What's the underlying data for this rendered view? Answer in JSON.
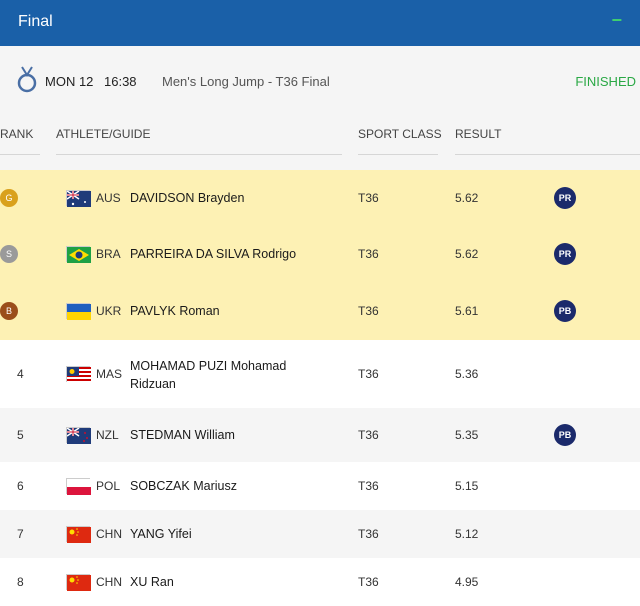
{
  "header": {
    "title": "Final",
    "collapse_icon": "minus-icon"
  },
  "event": {
    "date": "MON 12",
    "time": "16:38",
    "name": "Men's Long Jump - T36 Final",
    "status": "FINISHED",
    "status_color": "#2aa845",
    "medal_icon": "medal-icon"
  },
  "columns": {
    "rank": "RANK",
    "athlete": "ATHLETE/GUIDE",
    "sport_class": "SPORT CLASS",
    "result": "RESULT"
  },
  "rows": [
    {
      "rank": "G",
      "medal": "gold",
      "country": "AUS",
      "name": "DAVIDSON Brayden",
      "sport_class": "T36",
      "result": "5.62",
      "record": "PR"
    },
    {
      "rank": "S",
      "medal": "silver",
      "country": "BRA",
      "name": "PARREIRA DA SILVA Rodrigo",
      "sport_class": "T36",
      "result": "5.62",
      "record": "PR"
    },
    {
      "rank": "B",
      "medal": "bronze",
      "country": "UKR",
      "name": "PAVLYK Roman",
      "sport_class": "T36",
      "result": "5.61",
      "record": "PB"
    },
    {
      "rank": "4",
      "medal": "",
      "country": "MAS",
      "name": "MOHAMAD PUZI Mohamad",
      "name2": "Ridzuan",
      "sport_class": "T36",
      "result": "5.36",
      "record": ""
    },
    {
      "rank": "5",
      "medal": "",
      "country": "NZL",
      "name": "STEDMAN William",
      "sport_class": "T36",
      "result": "5.35",
      "record": "PB"
    },
    {
      "rank": "6",
      "medal": "",
      "country": "POL",
      "name": "SOBCZAK Mariusz",
      "sport_class": "T36",
      "result": "5.15",
      "record": ""
    },
    {
      "rank": "7",
      "medal": "",
      "country": "CHN",
      "name": "YANG Yifei",
      "sport_class": "T36",
      "result": "5.12",
      "record": ""
    },
    {
      "rank": "8",
      "medal": "",
      "country": "CHN",
      "name": "XU Ran",
      "sport_class": "T36",
      "result": "4.95",
      "record": ""
    }
  ],
  "colors": {
    "header_bg": "#1a60a8",
    "medal_row_bg": "#fdf1b4",
    "gold": "#d9a11d",
    "silver": "#9a9a9a",
    "bronze": "#9b4e1b",
    "badge": "#1b2a6b"
  }
}
